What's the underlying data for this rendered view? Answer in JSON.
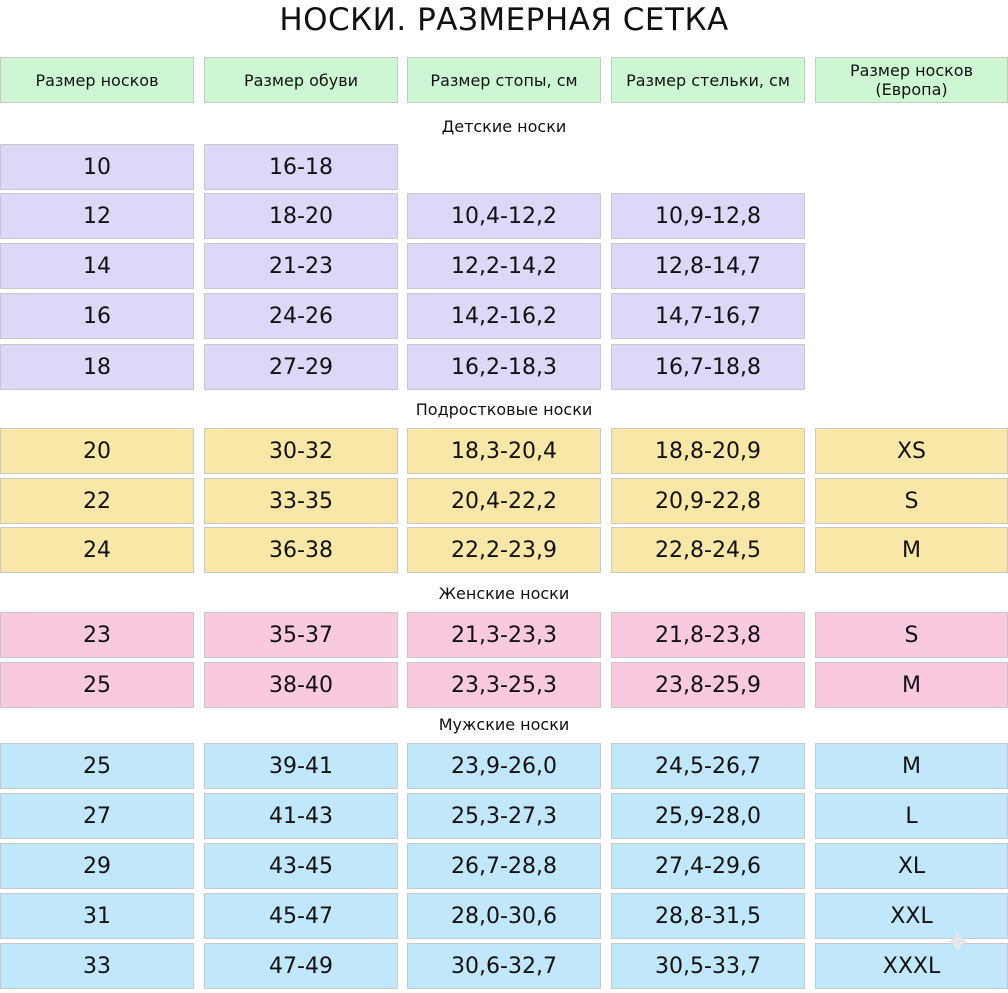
{
  "title": "НОСКИ. РАЗМЕРНАЯ СЕТКА",
  "headers": [
    "Размер носков",
    "Размер обуви",
    "Размер стопы, см",
    "Размер стельки, см",
    "Размер носков (Европа)"
  ],
  "header_color": "#cdf6d3",
  "sections": [
    {
      "label": "Детские носки",
      "color": "#dcd8f8",
      "rows": [
        [
          "10",
          "16-18",
          "",
          "",
          ""
        ],
        [
          "12",
          "18-20",
          "10,4-12,2",
          "10,9-12,8",
          ""
        ],
        [
          "14",
          "21-23",
          "12,2-14,2",
          "12,8-14,7",
          ""
        ],
        [
          "16",
          "24-26",
          "14,2-16,2",
          "14,7-16,7",
          ""
        ],
        [
          "18",
          "27-29",
          "16,2-18,3",
          "16,7-18,8",
          ""
        ]
      ]
    },
    {
      "label": "Подростковые носки",
      "color": "#f8e7a6",
      "rows": [
        [
          "20",
          "30-32",
          "18,3-20,4",
          "18,8-20,9",
          "XS"
        ],
        [
          "22",
          "33-35",
          "20,4-22,2",
          "20,9-22,8",
          "S"
        ],
        [
          "24",
          "36-38",
          "22,2-23,9",
          "22,8-24,5",
          "M"
        ]
      ]
    },
    {
      "label": "Женские носки",
      "color": "#f9c9df",
      "rows": [
        [
          "23",
          "35-37",
          "21,3-23,3",
          "21,8-23,8",
          "S"
        ],
        [
          "25",
          "38-40",
          "23,3-25,3",
          "23,8-25,9",
          "M"
        ]
      ]
    },
    {
      "label": "Мужские носки",
      "color": "#c0e7fa",
      "rows": [
        [
          "25",
          "39-41",
          "23,9-26,0",
          "24,5-26,7",
          "M"
        ],
        [
          "27",
          "41-43",
          "25,3-27,3",
          "25,9-28,0",
          "L"
        ],
        [
          "29",
          "43-45",
          "26,7-28,8",
          "27,4-29,6",
          "XL"
        ],
        [
          "31",
          "45-47",
          "28,0-30,6",
          "28,8-31,5",
          "XXL"
        ],
        [
          "33",
          "47-49",
          "30,6-32,7",
          "30,5-33,7",
          "XXXL"
        ]
      ]
    }
  ]
}
